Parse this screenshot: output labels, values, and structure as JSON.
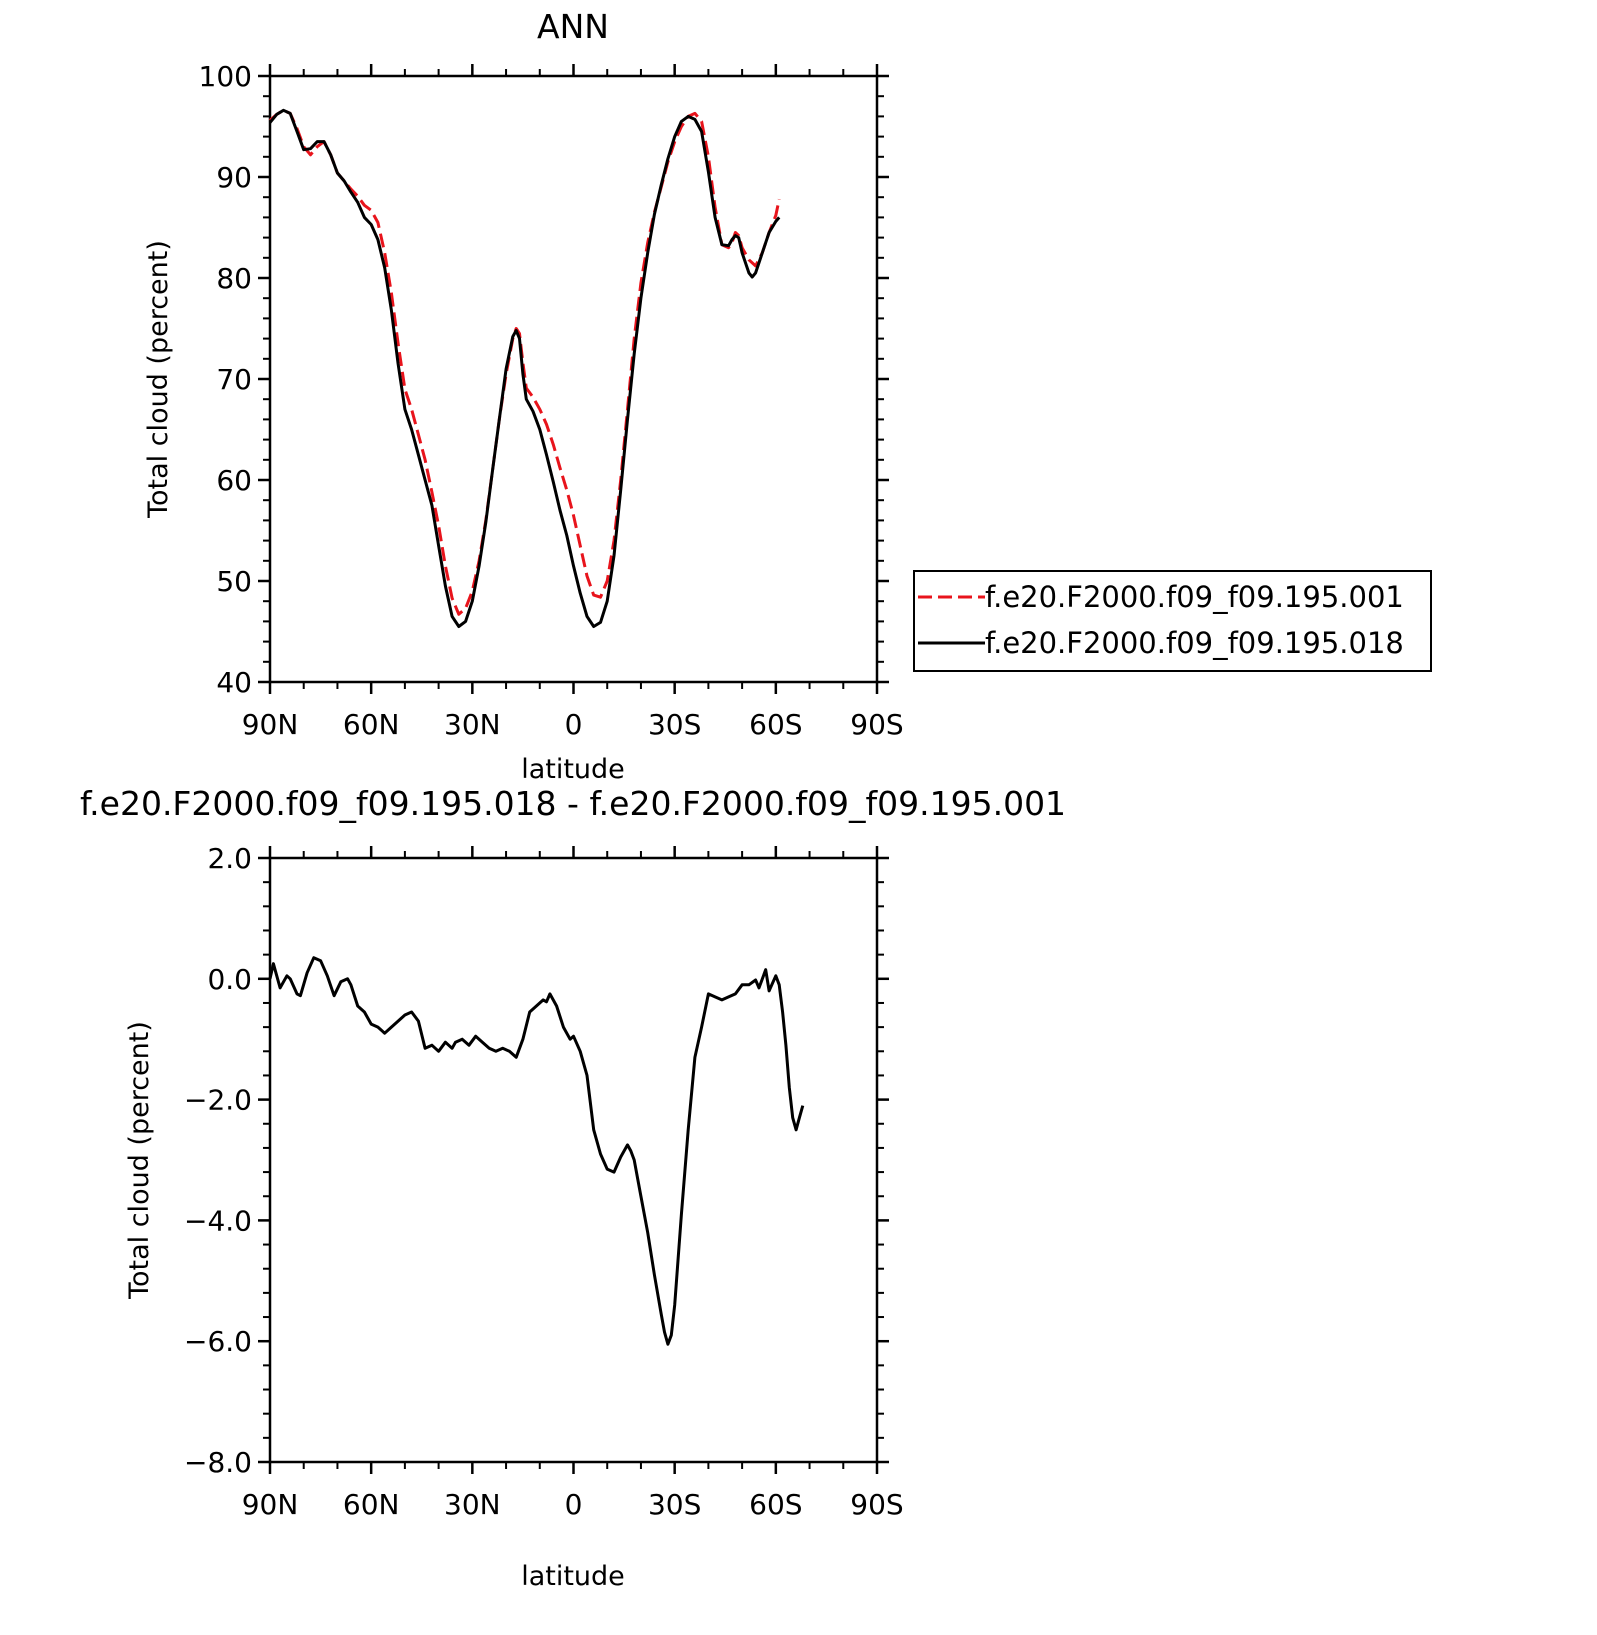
{
  "colors": {
    "background": "#ffffff",
    "axis": "#000000",
    "series_001": "#e8141c",
    "series_018": "#000000"
  },
  "chart_data": [
    {
      "type": "line",
      "title": "ANN",
      "xlabel": "latitude",
      "ylabel": "Total cloud (percent)",
      "xlim": [
        90,
        -90
      ],
      "ylim": [
        40,
        100
      ],
      "x_ticks": [
        90,
        60,
        30,
        0,
        -30,
        -60,
        -90
      ],
      "x_tick_labels": [
        "90N",
        "60N",
        "30N",
        "0",
        "30S",
        "60S",
        "90S"
      ],
      "y_ticks": [
        40,
        50,
        60,
        70,
        80,
        90,
        100
      ],
      "y_tick_labels": [
        "40",
        "50",
        "60",
        "70",
        "80",
        "90",
        "100"
      ],
      "legend_position": "right",
      "series": [
        {
          "name": "f.e20.F2000.f09_f09.195.001",
          "color": "#e8141c",
          "dash": "dashed",
          "points": [
            [
              90,
              95.6
            ],
            [
              88,
              96.2
            ],
            [
              86,
              96.6
            ],
            [
              84,
              96.3
            ],
            [
              82,
              94.8
            ],
            [
              80,
              93.0
            ],
            [
              78,
              92.2
            ],
            [
              76,
              93.0
            ],
            [
              74,
              93.5
            ],
            [
              72,
              92.2
            ],
            [
              70,
              90.4
            ],
            [
              68,
              89.6
            ],
            [
              66,
              88.8
            ],
            [
              64,
              88.1
            ],
            [
              62,
              87.2
            ],
            [
              60,
              86.7
            ],
            [
              58,
              85.5
            ],
            [
              56,
              82.5
            ],
            [
              54,
              78.5
            ],
            [
              52,
              73.5
            ],
            [
              50,
              69.0
            ],
            [
              48,
              67.0
            ],
            [
              46,
              64.5
            ],
            [
              44,
              62.0
            ],
            [
              42,
              58.8
            ],
            [
              40,
              55.5
            ],
            [
              38,
              51.5
            ],
            [
              36,
              48.3
            ],
            [
              34,
              46.7
            ],
            [
              32,
              47.3
            ],
            [
              30,
              49.0
            ],
            [
              28,
              52.0
            ],
            [
              26,
              56.0
            ],
            [
              24,
              61.0
            ],
            [
              22,
              66.0
            ],
            [
              20,
              70.5
            ],
            [
              18,
              74.0
            ],
            [
              17,
              75.0
            ],
            [
              16,
              74.5
            ],
            [
              15,
              71.6
            ],
            [
              14,
              69.1
            ],
            [
              12,
              68.2
            ],
            [
              10,
              67.0
            ],
            [
              8,
              65.5
            ],
            [
              6,
              63.5
            ],
            [
              4,
              61.2
            ],
            [
              2,
              59.0
            ],
            [
              0,
              56.5
            ],
            [
              -2,
              53.5
            ],
            [
              -4,
              50.5
            ],
            [
              -6,
              48.6
            ],
            [
              -8,
              48.4
            ],
            [
              -10,
              50.0
            ],
            [
              -12,
              54.0
            ],
            [
              -14,
              60.0
            ],
            [
              -16,
              67.0
            ],
            [
              -18,
              74.0
            ],
            [
              -20,
              79.5
            ],
            [
              -22,
              83.5
            ],
            [
              -24,
              86.5
            ],
            [
              -26,
              89.0
            ],
            [
              -28,
              91.5
            ],
            [
              -30,
              93.5
            ],
            [
              -32,
              95.0
            ],
            [
              -34,
              96.0
            ],
            [
              -36,
              96.3
            ],
            [
              -38,
              95.5
            ],
            [
              -40,
              92.0
            ],
            [
              -42,
              87.0
            ],
            [
              -44,
              83.3
            ],
            [
              -46,
              83.0
            ],
            [
              -47,
              83.5
            ],
            [
              -48,
              84.5
            ],
            [
              -49,
              84.2
            ],
            [
              -50,
              83.0
            ],
            [
              -52,
              81.8
            ],
            [
              -54,
              81.2
            ],
            [
              -56,
              82.5
            ],
            [
              -58,
              84.5
            ],
            [
              -60,
              86.2
            ],
            [
              -61,
              87.8
            ]
          ]
        },
        {
          "name": "f.e20.F2000.f09_f09.195.018",
          "color": "#000000",
          "dash": "solid",
          "points": [
            [
              90,
              95.4
            ],
            [
              88,
              96.2
            ],
            [
              86,
              96.6
            ],
            [
              84,
              96.3
            ],
            [
              82,
              94.5
            ],
            [
              80,
              92.7
            ],
            [
              78,
              92.8
            ],
            [
              76,
              93.5
            ],
            [
              74,
              93.5
            ],
            [
              72,
              92.2
            ],
            [
              70,
              90.4
            ],
            [
              68,
              89.6
            ],
            [
              66,
              88.5
            ],
            [
              64,
              87.5
            ],
            [
              62,
              86.0
            ],
            [
              60,
              85.3
            ],
            [
              58,
              83.8
            ],
            [
              56,
              81.0
            ],
            [
              54,
              76.8
            ],
            [
              52,
              71.5
            ],
            [
              50,
              67.0
            ],
            [
              48,
              65.0
            ],
            [
              46,
              62.5
            ],
            [
              44,
              60.0
            ],
            [
              42,
              57.5
            ],
            [
              40,
              53.5
            ],
            [
              38,
              49.5
            ],
            [
              36,
              46.5
            ],
            [
              34,
              45.5
            ],
            [
              32,
              46.0
            ],
            [
              30,
              48.0
            ],
            [
              28,
              51.5
            ],
            [
              26,
              55.8
            ],
            [
              24,
              61.0
            ],
            [
              22,
              66.0
            ],
            [
              20,
              71.0
            ],
            [
              18,
              74.2
            ],
            [
              17,
              74.8
            ],
            [
              16,
              74.0
            ],
            [
              15,
              70.5
            ],
            [
              14,
              68.0
            ],
            [
              12,
              66.8
            ],
            [
              10,
              65.0
            ],
            [
              8,
              62.5
            ],
            [
              6,
              59.8
            ],
            [
              4,
              57.0
            ],
            [
              2,
              54.5
            ],
            [
              0,
              51.5
            ],
            [
              -2,
              48.8
            ],
            [
              -4,
              46.5
            ],
            [
              -6,
              45.5
            ],
            [
              -8,
              45.9
            ],
            [
              -10,
              48.0
            ],
            [
              -12,
              52.5
            ],
            [
              -14,
              59.0
            ],
            [
              -16,
              66.0
            ],
            [
              -18,
              72.5
            ],
            [
              -20,
              78.0
            ],
            [
              -22,
              82.5
            ],
            [
              -24,
              86.3
            ],
            [
              -26,
              89.2
            ],
            [
              -28,
              91.8
            ],
            [
              -30,
              94.0
            ],
            [
              -32,
              95.5
            ],
            [
              -34,
              96.0
            ],
            [
              -36,
              95.7
            ],
            [
              -38,
              94.5
            ],
            [
              -40,
              90.5
            ],
            [
              -42,
              86.0
            ],
            [
              -44,
              83.3
            ],
            [
              -46,
              83.2
            ],
            [
              -47,
              83.8
            ],
            [
              -48,
              84.2
            ],
            [
              -49,
              84.0
            ],
            [
              -50,
              82.5
            ],
            [
              -52,
              80.5
            ],
            [
              -53,
              80.1
            ],
            [
              -54,
              80.5
            ],
            [
              -56,
              82.5
            ],
            [
              -58,
              84.5
            ],
            [
              -60,
              85.6
            ],
            [
              -61,
              86.0
            ]
          ]
        }
      ]
    },
    {
      "type": "line",
      "title": "f.e20.F2000.f09_f09.195.018 - f.e20.F2000.f09_f09.195.001",
      "xlabel": "latitude",
      "ylabel": "Total cloud (percent)",
      "xlim": [
        90,
        -90
      ],
      "ylim": [
        -8,
        2
      ],
      "x_ticks": [
        90,
        60,
        30,
        0,
        -30,
        -60,
        -90
      ],
      "x_tick_labels": [
        "90N",
        "60N",
        "30N",
        "0",
        "30S",
        "60S",
        "90S"
      ],
      "y_ticks": [
        -8,
        -6,
        -4,
        -2,
        0,
        2
      ],
      "y_tick_labels": [
        "−8.0",
        "−6.0",
        "−4.0",
        "−2.0",
        "0.0",
        "2.0"
      ],
      "series": [
        {
          "color": "#000000",
          "dash": "solid",
          "points": [
            [
              90,
              0.0
            ],
            [
              89,
              0.25
            ],
            [
              87,
              -0.15
            ],
            [
              85,
              0.05
            ],
            [
              84,
              0.0
            ],
            [
              82,
              -0.25
            ],
            [
              81,
              -0.28
            ],
            [
              79,
              0.1
            ],
            [
              77,
              0.35
            ],
            [
              75,
              0.3
            ],
            [
              73,
              0.05
            ],
            [
              71,
              -0.28
            ],
            [
              69,
              -0.05
            ],
            [
              67,
              0.0
            ],
            [
              66,
              -0.1
            ],
            [
              64,
              -0.45
            ],
            [
              62,
              -0.55
            ],
            [
              60,
              -0.75
            ],
            [
              58,
              -0.8
            ],
            [
              56,
              -0.9
            ],
            [
              54,
              -0.8
            ],
            [
              52,
              -0.7
            ],
            [
              50,
              -0.6
            ],
            [
              48,
              -0.55
            ],
            [
              46,
              -0.7
            ],
            [
              44,
              -1.15
            ],
            [
              42,
              -1.1
            ],
            [
              40,
              -1.2
            ],
            [
              38,
              -1.05
            ],
            [
              36,
              -1.15
            ],
            [
              35,
              -1.05
            ],
            [
              33,
              -1.0
            ],
            [
              31,
              -1.1
            ],
            [
              29,
              -0.95
            ],
            [
              27,
              -1.05
            ],
            [
              25,
              -1.15
            ],
            [
              23,
              -1.2
            ],
            [
              21,
              -1.15
            ],
            [
              19,
              -1.2
            ],
            [
              17,
              -1.3
            ],
            [
              15,
              -1.0
            ],
            [
              13,
              -0.55
            ],
            [
              11,
              -0.45
            ],
            [
              9,
              -0.35
            ],
            [
              8,
              -0.38
            ],
            [
              7,
              -0.25
            ],
            [
              5,
              -0.45
            ],
            [
              3,
              -0.8
            ],
            [
              1,
              -1.0
            ],
            [
              0,
              -0.95
            ],
            [
              -2,
              -1.2
            ],
            [
              -4,
              -1.6
            ],
            [
              -6,
              -2.5
            ],
            [
              -8,
              -2.9
            ],
            [
              -10,
              -3.15
            ],
            [
              -12,
              -3.2
            ],
            [
              -14,
              -2.95
            ],
            [
              -16,
              -2.75
            ],
            [
              -17,
              -2.85
            ],
            [
              -18,
              -3.0
            ],
            [
              -20,
              -3.6
            ],
            [
              -22,
              -4.2
            ],
            [
              -24,
              -4.9
            ],
            [
              -26,
              -5.55
            ],
            [
              -27,
              -5.85
            ],
            [
              -28,
              -6.05
            ],
            [
              -29,
              -5.9
            ],
            [
              -30,
              -5.4
            ],
            [
              -32,
              -3.9
            ],
            [
              -34,
              -2.5
            ],
            [
              -36,
              -1.3
            ],
            [
              -38,
              -0.8
            ],
            [
              -40,
              -0.25
            ],
            [
              -42,
              -0.3
            ],
            [
              -44,
              -0.35
            ],
            [
              -46,
              -0.3
            ],
            [
              -48,
              -0.25
            ],
            [
              -50,
              -0.1
            ],
            [
              -52,
              -0.1
            ],
            [
              -54,
              -0.02
            ],
            [
              -55,
              -0.15
            ],
            [
              -57,
              0.15
            ],
            [
              -58,
              -0.2
            ],
            [
              -60,
              0.05
            ],
            [
              -61,
              -0.1
            ],
            [
              -62,
              -0.55
            ],
            [
              -63,
              -1.1
            ],
            [
              -64,
              -1.8
            ],
            [
              -65,
              -2.3
            ],
            [
              -66,
              -2.5
            ],
            [
              -67,
              -2.3
            ],
            [
              -68,
              -2.1
            ]
          ]
        }
      ]
    }
  ]
}
